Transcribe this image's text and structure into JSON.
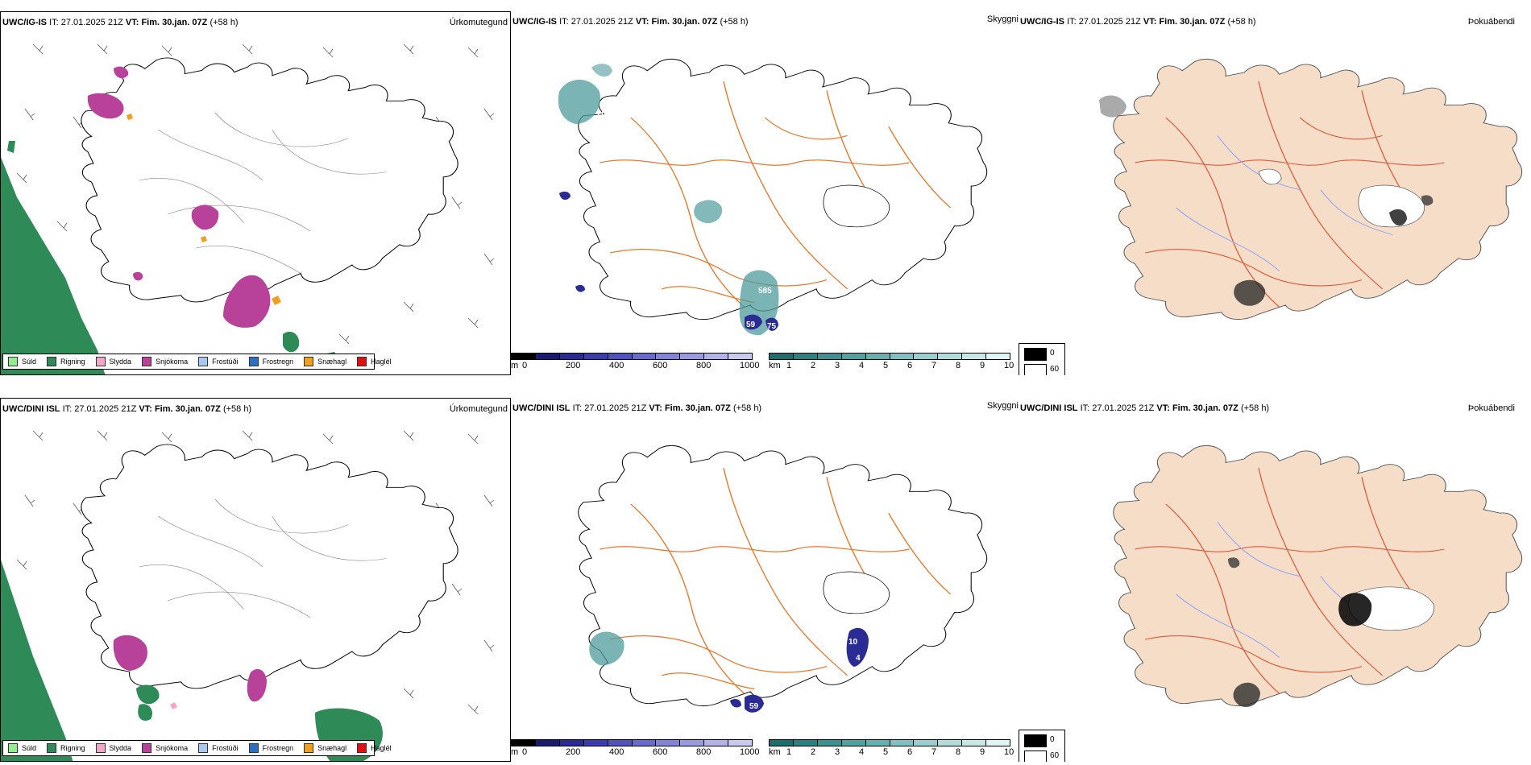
{
  "rows": [
    {
      "model": "UWC/IG-IS",
      "init_label": "IT:",
      "init_time": "27.01.2025 21Z",
      "valid_label": "VT:",
      "valid_time": "Fim. 30.jan. 07Z",
      "lead": "(+58 h)",
      "precip_numbers": [
        "201",
        "585",
        "59",
        "75"
      ]
    },
    {
      "model": "UWC/DINI ISL",
      "init_label": "IT:",
      "init_time": "27.01.2025 21Z",
      "valid_label": "VT:",
      "valid_time": "Fim. 30.jan. 07Z",
      "lead": "(+58 h)",
      "precip_numbers": [
        "10",
        "59",
        "4"
      ]
    }
  ],
  "panels": {
    "precip_type": "Úrkomutegund",
    "cloud": "Skyggni",
    "fog": "Þokuábendi"
  },
  "precip_legend": [
    {
      "label": "Súld",
      "color": "#90ee90"
    },
    {
      "label": "Rigning",
      "color": "#2e8b57"
    },
    {
      "label": "Slydda",
      "color": "#f4a6c8"
    },
    {
      "label": "Snjókoma",
      "color": "#b8429a"
    },
    {
      "label": "Frostúði",
      "color": "#a8c8f0"
    },
    {
      "label": "Frostregn",
      "color": "#2a6fc0"
    },
    {
      "label": "Snæhagl",
      "color": "#f0a020"
    },
    {
      "label": "Haglél",
      "color": "#e01010"
    }
  ],
  "colorbar_m": {
    "unit": "m",
    "ticks": [
      "0",
      "200",
      "400",
      "600",
      "800",
      "1000"
    ],
    "colors": [
      "#000000",
      "#1a1a6e",
      "#2b2b96",
      "#3c3cae",
      "#5252bf",
      "#6a6acc",
      "#8282d6",
      "#9a9ae0",
      "#b2b2e8",
      "#cacaf0"
    ]
  },
  "colorbar_km": {
    "unit": "km",
    "ticks": [
      "1",
      "2",
      "3",
      "4",
      "5",
      "6",
      "7",
      "8",
      "9",
      "10"
    ],
    "colors": [
      "#1f6d6d",
      "#2e7f7f",
      "#3f9090",
      "#52a0a0",
      "#68b0b0",
      "#80c0c0",
      "#98cece",
      "#b0dcdc",
      "#c8e8e8",
      "#e0f4f4"
    ]
  },
  "fog_legend": [
    {
      "label": "0",
      "color": "#000000"
    },
    {
      "label": "60",
      "color": "#ffffff"
    }
  ],
  "colors": {
    "land_fill": "#f5ddc8",
    "roads": "#e8782a",
    "rivers": "#8aa0ff",
    "rain": "#2e8b57",
    "snow": "#b8429a",
    "teal": "#4f9b9b",
    "blue": "#2b2b96"
  }
}
